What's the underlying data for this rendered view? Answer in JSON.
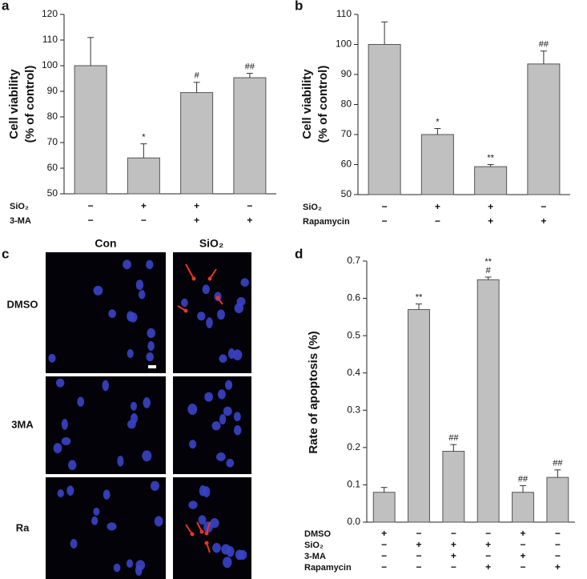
{
  "chart_data": [
    {
      "type": "bar",
      "panel": "a",
      "ylabel": [
        "Cell viability",
        "(% of control)"
      ],
      "values": [
        100,
        64,
        89.5,
        95.3
      ],
      "errors": [
        11,
        5.5,
        4,
        1.7
      ],
      "annotations": [
        [],
        [
          "*"
        ],
        [
          "#"
        ],
        [
          "##"
        ]
      ],
      "conditions": [
        {
          "label": "SiO₂",
          "signs": [
            "−",
            "+",
            "+",
            "−"
          ]
        },
        {
          "label": "3-MA",
          "signs": [
            "−",
            "−",
            "+",
            "+"
          ]
        }
      ],
      "ylim": [
        50,
        120
      ],
      "yticks": [
        50,
        60,
        70,
        80,
        90,
        100,
        110,
        120
      ],
      "color": "#c0c0c0"
    },
    {
      "type": "bar",
      "panel": "b",
      "ylabel": [
        "Cell viability",
        "(% of control)"
      ],
      "values": [
        100,
        70,
        59.3,
        93.5
      ],
      "errors": [
        7.5,
        2,
        0.7,
        4.3
      ],
      "annotations": [
        [],
        [
          "*"
        ],
        [
          "**"
        ],
        [
          "##"
        ]
      ],
      "conditions": [
        {
          "label": "SiO₂",
          "signs": [
            "−",
            "+",
            "+",
            "−"
          ]
        },
        {
          "label": "Rapamycin",
          "signs": [
            "−",
            "−",
            "+",
            "+"
          ]
        }
      ],
      "ylim": [
        50,
        110
      ],
      "yticks": [
        50,
        60,
        70,
        80,
        90,
        100,
        110
      ],
      "color": "#c0c0c0"
    },
    {
      "type": "bar",
      "panel": "d",
      "ylabel": [
        "Rate of apoptosis (%)"
      ],
      "values": [
        0.08,
        0.57,
        0.19,
        0.65,
        0.08,
        0.12
      ],
      "errors": [
        0.013,
        0.015,
        0.018,
        0.007,
        0.018,
        0.02
      ],
      "annotations": [
        [],
        [
          "**"
        ],
        [
          "##"
        ],
        [
          "**",
          "#"
        ],
        [
          "##"
        ],
        [
          "##"
        ]
      ],
      "conditions": [
        {
          "label": "DMSO",
          "signs": [
            "+",
            "−",
            "−",
            "−",
            "+",
            "−"
          ]
        },
        {
          "label": "SiO₂",
          "signs": [
            "−",
            "+",
            "+",
            "+",
            "−",
            "−"
          ]
        },
        {
          "label": "3-MA",
          "signs": [
            "−",
            "−",
            "+",
            "−",
            "+",
            "−"
          ]
        },
        {
          "label": "Rapamycin",
          "signs": [
            "−",
            "−",
            "−",
            "+",
            "−",
            "+"
          ]
        }
      ],
      "ylim": [
        0,
        0.7
      ],
      "yticks": [
        {
          "value": 0,
          "label": "0.0"
        },
        0.1,
        0.2,
        0.3,
        0.4,
        0.5,
        0.6,
        0.7
      ],
      "color": "#c0c0c0"
    }
  ],
  "image_panel": {
    "panel": "c",
    "columns": [
      "Con",
      "SiO₂"
    ],
    "rows": [
      "DMSO",
      "3MA",
      "Ra"
    ]
  }
}
